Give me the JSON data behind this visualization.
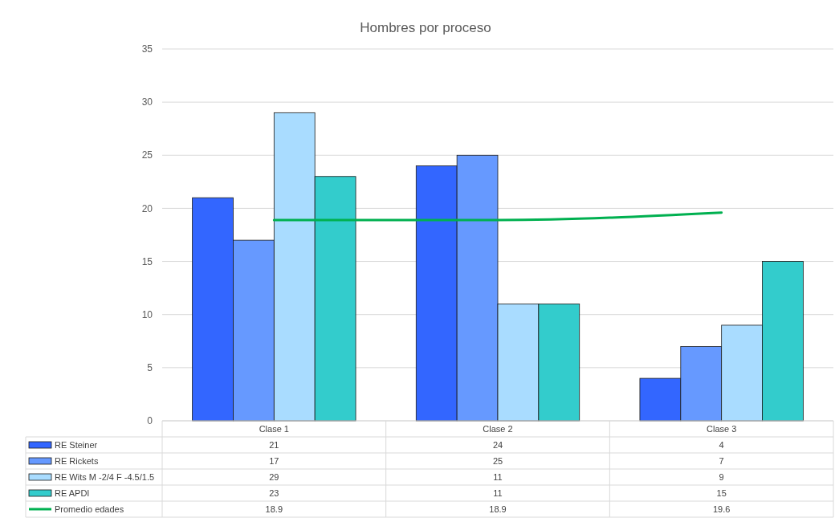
{
  "chart_data": {
    "type": "bar",
    "title": "Hombres por proceso",
    "categories": [
      "Clase 1",
      "Clase 2",
      "Clase 3"
    ],
    "series": [
      {
        "name": "RE Steiner",
        "color": "#3366ff",
        "values": [
          21,
          24,
          4
        ]
      },
      {
        "name": "RE Rickets",
        "color": "#6699ff",
        "values": [
          17,
          25,
          7
        ]
      },
      {
        "name": "RE Wits M -2/4 F -4.5/1.5",
        "color": "#a9dcff",
        "values": [
          29,
          11,
          9
        ]
      },
      {
        "name": "RE APDI",
        "color": "#33cccc",
        "values": [
          23,
          11,
          15
        ]
      },
      {
        "name": "Promedio edades",
        "type": "line",
        "color": "#00b050",
        "values": [
          18.9,
          18.9,
          19.6
        ]
      }
    ],
    "ylim": [
      0,
      35
    ],
    "yticks": [
      0,
      5,
      10,
      15,
      20,
      25,
      30,
      35
    ],
    "grid": "y",
    "legend": "bottom",
    "data_labels": true,
    "marker": "none"
  }
}
